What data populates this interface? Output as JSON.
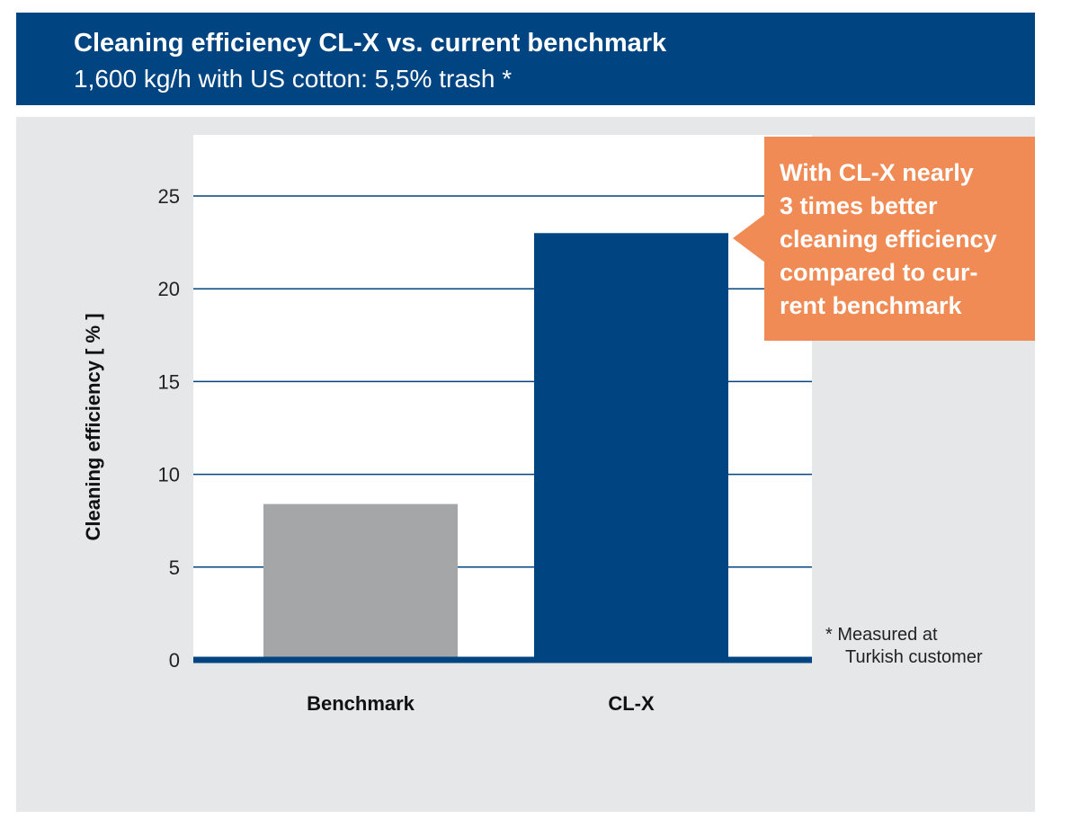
{
  "header": {
    "title": "Cleaning efficiency CL-X vs. current benchmark",
    "subtitle": "1,600 kg/h with US cotton: 5,5% trash *"
  },
  "callout": {
    "lines": [
      "With CL-X nearly",
      "3 times better",
      "cleaning efficiency",
      "compared to cur-",
      "rent benchmark"
    ]
  },
  "footnote": {
    "lines": [
      "* Measured at",
      "Turkish customer"
    ]
  },
  "chart_data": {
    "type": "bar",
    "categories": [
      "Benchmark",
      "CL-X"
    ],
    "values": [
      8.4,
      23.0
    ],
    "colors": [
      "#a4a6a8",
      "#004481"
    ],
    "ylabel": "Cleaning efficiency [ % ]",
    "xlabel": "",
    "ylim": [
      0,
      25
    ],
    "yticks": [
      0,
      5,
      10,
      15,
      20,
      25
    ],
    "grid": true
  }
}
